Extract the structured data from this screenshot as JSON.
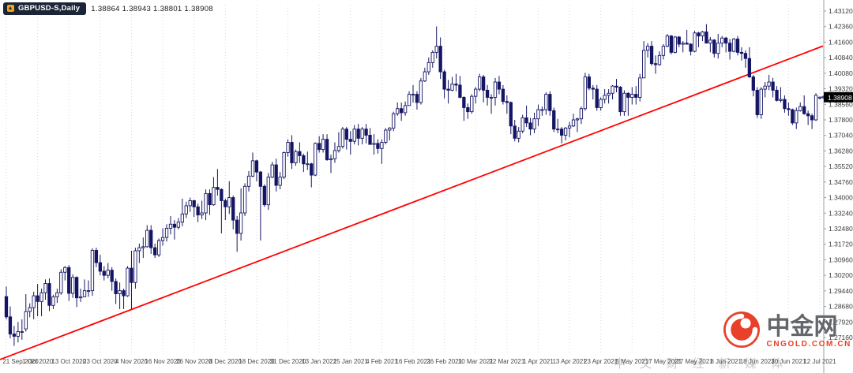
{
  "header": {
    "symbol_label": "GBPUSD-S,Daily",
    "quote_ohlc": "1.38864 1.38943 1.38801 1.38908"
  },
  "price_marker": {
    "value": "1.38908"
  },
  "watermark": {
    "tagline": "中 文 财 经 新 媒 体",
    "brand": "中金网",
    "domain": "CNGOLD.COM.CN"
  },
  "colors": {
    "trendline": "#FF0000",
    "candle": "#151565",
    "up_fill": "#FFFFFF",
    "down_fill": "#151565",
    "grid": "#D9D9D9",
    "axis_line": "#9AA0A6",
    "marker_bg": "#000000",
    "marker_text": "#FFFFFF",
    "bid_arrow": "#2F4F9E",
    "logo_red": "#E8402A"
  },
  "chart_data": {
    "type": "candlestick",
    "title": "GBPUSD-S,Daily",
    "symbol": "GBPUSD",
    "timeframe": "Daily",
    "current_price": 1.38908,
    "x_label_every": 8,
    "x_labels": [
      "21 Sep 2020",
      "1 Oct 2020",
      "13 Oct 2020",
      "23 Oct 2020",
      "4 Nov 2020",
      "16 Nov 2020",
      "26 Nov 2020",
      "8 Dec 2020",
      "18 Dec 2020",
      "31 Dec 2020",
      "13 Jan 2021",
      "25 Jan 2021",
      "4 Feb 2021",
      "16 Feb 2021",
      "26 Feb 2021",
      "10 Mar 2021",
      "22 Mar 2021",
      "1 Apr 2021",
      "13 Apr 2021",
      "23 Apr 2021",
      "5 May 2021",
      "17 May 2021",
      "27 May 2021",
      "8 Jun 2021",
      "18 Jun 2021",
      "30 Jun 2021",
      "12 Jul 2021"
    ],
    "y_axis": {
      "max": 1.4312,
      "min": 1.2716,
      "step": 0.0076,
      "labels": [
        "1.43120",
        "1.42360",
        "1.41600",
        "1.40840",
        "1.40080",
        "1.39320",
        "1.38560",
        "1.37800",
        "1.37040",
        "1.36280",
        "1.35520",
        "1.34760",
        "1.34000",
        "1.33240",
        "1.32480",
        "1.31720",
        "1.30960",
        "1.30200",
        "1.29440",
        "1.28680",
        "1.27920",
        "1.27160"
      ]
    },
    "trendline": {
      "from_index": 0,
      "from_price": 1.262,
      "to_index": 208,
      "to_price": 1.4135,
      "color": "#FF0000"
    },
    "ohlc": [
      [
        1.2916,
        1.2965,
        1.2805,
        1.2817
      ],
      [
        1.2817,
        1.2868,
        1.2712,
        1.2733
      ],
      [
        1.2733,
        1.2773,
        1.2675,
        1.2722
      ],
      [
        1.2722,
        1.2792,
        1.2692,
        1.2745
      ],
      [
        1.2745,
        1.2805,
        1.2705,
        1.2745
      ],
      [
        1.2758,
        1.2928,
        1.2745,
        1.2843
      ],
      [
        1.2843,
        1.2883,
        1.2815,
        1.2862
      ],
      [
        1.2862,
        1.294,
        1.2805,
        1.292
      ],
      [
        1.292,
        1.2978,
        1.282,
        1.2892
      ],
      [
        1.2892,
        1.2955,
        1.282,
        1.2935
      ],
      [
        1.2935,
        1.3,
        1.29,
        1.298
      ],
      [
        1.298,
        1.3005,
        1.2845,
        1.2873
      ],
      [
        1.2873,
        1.2925,
        1.2855,
        1.2915
      ],
      [
        1.2915,
        1.2955,
        1.2885,
        1.2935
      ],
      [
        1.2935,
        1.305,
        1.2925,
        1.3035
      ],
      [
        1.3035,
        1.3065,
        1.2995,
        1.3058
      ],
      [
        1.3058,
        1.307,
        1.2895,
        1.2932
      ],
      [
        1.2932,
        1.3025,
        1.291,
        1.301
      ],
      [
        1.301,
        1.3015,
        1.2865,
        1.291
      ],
      [
        1.291,
        1.2955,
        1.289,
        1.2915
      ],
      [
        1.2915,
        1.3,
        1.2915,
        1.2945
      ],
      [
        1.2945,
        1.2995,
        1.2915,
        1.2945
      ],
      [
        1.2945,
        1.3152,
        1.292,
        1.3142
      ],
      [
        1.3142,
        1.3155,
        1.306,
        1.3082
      ],
      [
        1.3082,
        1.312,
        1.302,
        1.304
      ],
      [
        1.304,
        1.3065,
        1.2995,
        1.302
      ],
      [
        1.302,
        1.308,
        1.3005,
        1.3045
      ],
      [
        1.3045,
        1.306,
        1.2945,
        1.299
      ],
      [
        1.299,
        1.3005,
        1.288,
        1.293
      ],
      [
        1.293,
        1.2985,
        1.2855,
        1.2945
      ],
      [
        1.2945,
        1.2955,
        1.2855,
        1.292
      ],
      [
        1.292,
        1.3065,
        1.2915,
        1.3055
      ],
      [
        1.3055,
        1.314,
        1.2855,
        1.2985
      ],
      [
        1.2985,
        1.3155,
        1.2955,
        1.314
      ],
      [
        1.314,
        1.3175,
        1.308,
        1.3155
      ],
      [
        1.3155,
        1.3205,
        1.3105,
        1.316
      ],
      [
        1.316,
        1.3265,
        1.3155,
        1.324
      ],
      [
        1.324,
        1.3265,
        1.3125,
        1.3155
      ],
      [
        1.3155,
        1.3175,
        1.3105,
        1.312
      ],
      [
        1.312,
        1.32,
        1.311,
        1.319
      ],
      [
        1.319,
        1.325,
        1.3165,
        1.3205
      ],
      [
        1.3205,
        1.327,
        1.3185,
        1.325
      ],
      [
        1.325,
        1.331,
        1.322,
        1.327
      ],
      [
        1.327,
        1.329,
        1.3195,
        1.3255
      ],
      [
        1.3255,
        1.33,
        1.3245,
        1.328
      ],
      [
        1.328,
        1.3395,
        1.326,
        1.332
      ],
      [
        1.332,
        1.338,
        1.33,
        1.336
      ],
      [
        1.336,
        1.34,
        1.333,
        1.3385
      ],
      [
        1.3385,
        1.339,
        1.3305,
        1.3355
      ],
      [
        1.3355,
        1.337,
        1.328,
        1.3315
      ],
      [
        1.3315,
        1.3385,
        1.3295,
        1.3325
      ],
      [
        1.3325,
        1.344,
        1.329,
        1.342
      ],
      [
        1.342,
        1.344,
        1.3315,
        1.3365
      ],
      [
        1.3365,
        1.35,
        1.336,
        1.345
      ],
      [
        1.345,
        1.354,
        1.341,
        1.344
      ],
      [
        1.344,
        1.3445,
        1.3225,
        1.3385
      ],
      [
        1.3385,
        1.3395,
        1.329,
        1.3355
      ],
      [
        1.3355,
        1.348,
        1.332,
        1.34
      ],
      [
        1.34,
        1.341,
        1.3245,
        1.329
      ],
      [
        1.329,
        1.331,
        1.3135,
        1.3225
      ],
      [
        1.3225,
        1.3445,
        1.319,
        1.3325
      ],
      [
        1.3325,
        1.347,
        1.331,
        1.3455
      ],
      [
        1.3455,
        1.353,
        1.343,
        1.3505
      ],
      [
        1.3505,
        1.362,
        1.35,
        1.358
      ],
      [
        1.358,
        1.3585,
        1.348,
        1.3525
      ],
      [
        1.3525,
        1.353,
        1.319,
        1.3455
      ],
      [
        1.3455,
        1.3465,
        1.3355,
        1.3365
      ],
      [
        1.3365,
        1.352,
        1.334,
        1.35
      ],
      [
        1.35,
        1.3575,
        1.3495,
        1.356
      ],
      [
        1.356,
        1.359,
        1.343,
        1.346
      ],
      [
        1.346,
        1.3525,
        1.344,
        1.35
      ],
      [
        1.35,
        1.3625,
        1.349,
        1.362
      ],
      [
        1.362,
        1.3685,
        1.36,
        1.367
      ],
      [
        1.367,
        1.3705,
        1.354,
        1.357
      ],
      [
        1.357,
        1.3635,
        1.3555,
        1.3625
      ],
      [
        1.3625,
        1.367,
        1.357,
        1.3605
      ],
      [
        1.3605,
        1.3615,
        1.3525,
        1.3565
      ],
      [
        1.3565,
        1.3625,
        1.3535,
        1.3565
      ],
      [
        1.3565,
        1.357,
        1.345,
        1.351
      ],
      [
        1.351,
        1.367,
        1.3505,
        1.3665
      ],
      [
        1.3665,
        1.37,
        1.362,
        1.3635
      ],
      [
        1.3635,
        1.371,
        1.362,
        1.3685
      ],
      [
        1.3685,
        1.371,
        1.358,
        1.3585
      ],
      [
        1.3585,
        1.361,
        1.352,
        1.359
      ],
      [
        1.359,
        1.367,
        1.357,
        1.363
      ],
      [
        1.363,
        1.372,
        1.362,
        1.365
      ],
      [
        1.365,
        1.3745,
        1.364,
        1.3735
      ],
      [
        1.3735,
        1.3745,
        1.3635,
        1.3685
      ],
      [
        1.3685,
        1.3725,
        1.361,
        1.3675
      ],
      [
        1.3675,
        1.3755,
        1.366,
        1.3735
      ],
      [
        1.3735,
        1.376,
        1.3655,
        1.369
      ],
      [
        1.369,
        1.3745,
        1.366,
        1.3735
      ],
      [
        1.3735,
        1.376,
        1.3665,
        1.3705
      ],
      [
        1.3705,
        1.374,
        1.366,
        1.366
      ],
      [
        1.366,
        1.371,
        1.361,
        1.3665
      ],
      [
        1.3665,
        1.3685,
        1.3615,
        1.364
      ],
      [
        1.364,
        1.3685,
        1.3565,
        1.367
      ],
      [
        1.367,
        1.374,
        1.366,
        1.373
      ],
      [
        1.373,
        1.3745,
        1.368,
        1.374
      ],
      [
        1.374,
        1.382,
        1.3725,
        1.381
      ],
      [
        1.381,
        1.3865,
        1.38,
        1.3835
      ],
      [
        1.3835,
        1.3865,
        1.3775,
        1.3815
      ],
      [
        1.3815,
        1.387,
        1.38,
        1.385
      ],
      [
        1.385,
        1.392,
        1.385,
        1.3905
      ],
      [
        1.3905,
        1.395,
        1.3865,
        1.3905
      ],
      [
        1.3905,
        1.392,
        1.383,
        1.3865
      ],
      [
        1.3865,
        1.3985,
        1.3855,
        1.397
      ],
      [
        1.397,
        1.4035,
        1.3965,
        1.4015
      ],
      [
        1.4015,
        1.4085,
        1.4,
        1.406
      ],
      [
        1.406,
        1.412,
        1.4035,
        1.411
      ],
      [
        1.411,
        1.4237,
        1.408,
        1.414
      ],
      [
        1.414,
        1.4183,
        1.398,
        1.4015
      ],
      [
        1.4015,
        1.4025,
        1.3885,
        1.393
      ],
      [
        1.393,
        1.3975,
        1.386,
        1.3925
      ],
      [
        1.3925,
        1.399,
        1.392,
        1.3955
      ],
      [
        1.3955,
        1.4005,
        1.392,
        1.395
      ],
      [
        1.395,
        1.3995,
        1.3885,
        1.389
      ],
      [
        1.389,
        1.3895,
        1.3775,
        1.384
      ],
      [
        1.384,
        1.386,
        1.3785,
        1.382
      ],
      [
        1.382,
        1.3905,
        1.381,
        1.3895
      ],
      [
        1.3895,
        1.394,
        1.386,
        1.393
      ],
      [
        1.393,
        1.4005,
        1.392,
        1.399
      ],
      [
        1.399,
        1.4,
        1.3865,
        1.3925
      ],
      [
        1.3925,
        1.395,
        1.385,
        1.389
      ],
      [
        1.389,
        1.3905,
        1.381,
        1.389
      ],
      [
        1.389,
        1.3985,
        1.385,
        1.3965
      ],
      [
        1.3965,
        1.3995,
        1.3905,
        1.393
      ],
      [
        1.393,
        1.395,
        1.3855,
        1.387
      ],
      [
        1.387,
        1.39,
        1.381,
        1.3865
      ],
      [
        1.3865,
        1.387,
        1.371,
        1.375
      ],
      [
        1.375,
        1.378,
        1.3675,
        1.369
      ],
      [
        1.369,
        1.3745,
        1.367,
        1.3725
      ],
      [
        1.3725,
        1.3805,
        1.3715,
        1.379
      ],
      [
        1.379,
        1.385,
        1.3745,
        1.3765
      ],
      [
        1.3765,
        1.379,
        1.3705,
        1.3735
      ],
      [
        1.3735,
        1.3815,
        1.3715,
        1.3785
      ],
      [
        1.3785,
        1.3855,
        1.375,
        1.383
      ],
      [
        1.383,
        1.3845,
        1.38,
        1.383
      ],
      [
        1.383,
        1.3915,
        1.3805,
        1.3905
      ],
      [
        1.3905,
        1.392,
        1.38,
        1.3825
      ],
      [
        1.3825,
        1.384,
        1.372,
        1.3735
      ],
      [
        1.3735,
        1.3785,
        1.3715,
        1.3735
      ],
      [
        1.3735,
        1.3745,
        1.3665,
        1.3705
      ],
      [
        1.3705,
        1.3745,
        1.368,
        1.374
      ],
      [
        1.374,
        1.377,
        1.3695,
        1.375
      ],
      [
        1.375,
        1.381,
        1.3745,
        1.378
      ],
      [
        1.378,
        1.379,
        1.372,
        1.3785
      ],
      [
        1.3785,
        1.3845,
        1.376,
        1.3835
      ],
      [
        1.3835,
        1.401,
        1.3825,
        1.399
      ],
      [
        1.399,
        1.4005,
        1.3925,
        1.3935
      ],
      [
        1.3935,
        1.395,
        1.388,
        1.393
      ],
      [
        1.393,
        1.395,
        1.3825,
        1.384
      ],
      [
        1.384,
        1.389,
        1.3825,
        1.388
      ],
      [
        1.388,
        1.393,
        1.386,
        1.39
      ],
      [
        1.39,
        1.393,
        1.386,
        1.391
      ],
      [
        1.391,
        1.395,
        1.388,
        1.3945
      ],
      [
        1.3945,
        1.398,
        1.3915,
        1.394
      ],
      [
        1.394,
        1.3945,
        1.38,
        1.382
      ],
      [
        1.382,
        1.3925,
        1.38,
        1.391
      ],
      [
        1.391,
        1.3915,
        1.38,
        1.389
      ],
      [
        1.389,
        1.394,
        1.3855,
        1.3905
      ],
      [
        1.3905,
        1.3945,
        1.3855,
        1.389
      ],
      [
        1.389,
        1.4005,
        1.387,
        1.3985
      ],
      [
        1.3985,
        1.4165,
        1.3985,
        1.412
      ],
      [
        1.412,
        1.4155,
        1.4085,
        1.414
      ],
      [
        1.414,
        1.4165,
        1.4045,
        1.4055
      ],
      [
        1.4055,
        1.4095,
        1.4005,
        1.405
      ],
      [
        1.405,
        1.4115,
        1.4045,
        1.4095
      ],
      [
        1.4095,
        1.415,
        1.4075,
        1.414
      ],
      [
        1.414,
        1.42,
        1.4135,
        1.419
      ],
      [
        1.419,
        1.4195,
        1.41,
        1.411
      ],
      [
        1.411,
        1.419,
        1.4105,
        1.4185
      ],
      [
        1.4185,
        1.419,
        1.4135,
        1.415
      ],
      [
        1.415,
        1.4165,
        1.411,
        1.4155
      ],
      [
        1.4155,
        1.422,
        1.415,
        1.415
      ],
      [
        1.415,
        1.4155,
        1.4095,
        1.4115
      ],
      [
        1.4115,
        1.4215,
        1.411,
        1.4205
      ],
      [
        1.4205,
        1.421,
        1.4135,
        1.419
      ],
      [
        1.419,
        1.4215,
        1.4165,
        1.421
      ],
      [
        1.421,
        1.4248,
        1.416,
        1.4155
      ],
      [
        1.4155,
        1.4185,
        1.411,
        1.417
      ],
      [
        1.417,
        1.4175,
        1.4085,
        1.4105
      ],
      [
        1.4105,
        1.42,
        1.408,
        1.4155
      ],
      [
        1.4155,
        1.419,
        1.4135,
        1.418
      ],
      [
        1.418,
        1.4185,
        1.411,
        1.4155
      ],
      [
        1.4155,
        1.4175,
        1.4075,
        1.4115
      ],
      [
        1.4115,
        1.418,
        1.411,
        1.4175
      ],
      [
        1.4175,
        1.419,
        1.4095,
        1.411
      ],
      [
        1.411,
        1.4135,
        1.407,
        1.4105
      ],
      [
        1.4105,
        1.412,
        1.4035,
        1.408
      ],
      [
        1.408,
        1.4135,
        1.3985,
        1.399
      ],
      [
        1.399,
        1.4,
        1.3895,
        1.3925
      ],
      [
        1.3925,
        1.394,
        1.379,
        1.3805
      ],
      [
        1.3805,
        1.394,
        1.3785,
        1.393
      ],
      [
        1.393,
        1.3965,
        1.389,
        1.3945
      ],
      [
        1.3945,
        1.4,
        1.3925,
        1.3965
      ],
      [
        1.3965,
        1.3985,
        1.389,
        1.3925
      ],
      [
        1.3925,
        1.3945,
        1.387,
        1.3875
      ],
      [
        1.3875,
        1.394,
        1.3865,
        1.388
      ],
      [
        1.388,
        1.39,
        1.3815,
        1.3835
      ],
      [
        1.3835,
        1.3865,
        1.38,
        1.383
      ],
      [
        1.383,
        1.3835,
        1.3755,
        1.3765
      ],
      [
        1.3765,
        1.384,
        1.3735,
        1.3825
      ],
      [
        1.3825,
        1.3865,
        1.382,
        1.3845
      ],
      [
        1.3845,
        1.39,
        1.3805,
        1.381
      ],
      [
        1.381,
        1.3825,
        1.3755,
        1.38
      ],
      [
        1.38,
        1.381,
        1.3735,
        1.378
      ],
      [
        1.378,
        1.391,
        1.3775,
        1.39
      ],
      [
        1.38864,
        1.38943,
        1.38801,
        1.38908
      ]
    ]
  }
}
